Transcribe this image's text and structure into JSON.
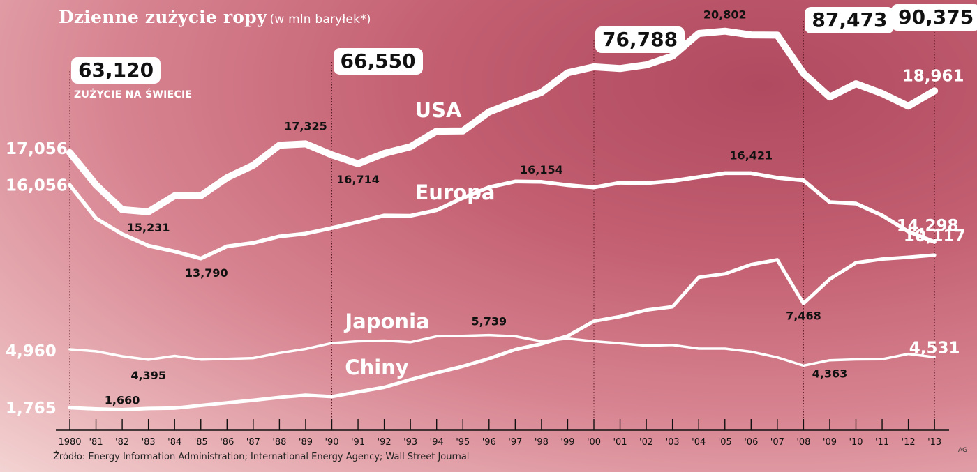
{
  "header": {
    "title": "Dzienne zużycie ropy",
    "subtitle": "(w mln baryłek*)"
  },
  "world_label": "ZUŻYCIE NA ŚWIECIE",
  "source": "Źródło: Energy Information Administration; International Energy Agency; Wall Street Journal",
  "credit": "AG",
  "colors": {
    "line": "#ffffff",
    "axis": "#111111"
  },
  "chart_data": {
    "type": "line",
    "title": "Dzienne zużycie ropy",
    "subtitle": "(w mln baryłek*)",
    "x": [
      1980,
      1981,
      1982,
      1983,
      1984,
      1985,
      1986,
      1987,
      1988,
      1989,
      1990,
      1991,
      1992,
      1993,
      1994,
      1995,
      1996,
      1997,
      1998,
      1999,
      2000,
      2001,
      2002,
      2003,
      2004,
      2005,
      2006,
      2007,
      2008,
      2009,
      2010,
      2011,
      2012,
      2013
    ],
    "x_tick_labels": [
      "1980",
      "'81",
      "'82",
      "'83",
      "'84",
      "'85",
      "'86",
      "'87",
      "'88",
      "'89",
      "'90",
      "'91",
      "'92",
      "'93",
      "'94",
      "'95",
      "'96",
      "'97",
      "'98",
      "'99",
      "'00",
      "'01",
      "'02",
      "'03",
      "'04",
      "'05",
      "'06",
      "'07",
      "'08",
      "'09",
      "'10",
      "'11",
      "'12",
      "'13"
    ],
    "world": [
      {
        "year": 1980,
        "label": "63,120"
      },
      {
        "year": 1990,
        "label": "66,550"
      },
      {
        "year": 2000,
        "label": "76,788"
      },
      {
        "year": 2008,
        "label": "87,473"
      },
      {
        "year": 2013,
        "label": "90,375"
      }
    ],
    "series": [
      {
        "name": "USA",
        "values": [
          17.056,
          16.058,
          15.296,
          15.231,
          15.726,
          15.726,
          16.281,
          16.665,
          17.283,
          17.325,
          16.988,
          16.714,
          17.033,
          17.237,
          17.718,
          17.725,
          18.309,
          18.62,
          18.917,
          19.519,
          19.701,
          19.649,
          19.761,
          20.034,
          20.731,
          20.802,
          20.687,
          20.68,
          19.498,
          18.771,
          19.18,
          18.882,
          18.49,
          18.961
        ],
        "labels": [
          {
            "year": 1980,
            "text": "17,056"
          },
          {
            "year": 1983,
            "text": "15,231"
          },
          {
            "year": 1989,
            "text": "17,325"
          },
          {
            "year": 1991,
            "text": "16,714"
          },
          {
            "year": 2005,
            "text": "20,802"
          },
          {
            "year": 2013,
            "text": "18,961"
          }
        ]
      },
      {
        "name": "Europa",
        "values": [
          16.056,
          15.027,
          14.542,
          14.184,
          14.009,
          13.79,
          14.166,
          14.272,
          14.471,
          14.556,
          14.728,
          14.917,
          15.117,
          15.108,
          15.282,
          15.658,
          15.987,
          16.166,
          16.154,
          16.054,
          15.986,
          16.126,
          16.113,
          16.183,
          16.302,
          16.421,
          16.421,
          16.28,
          16.201,
          15.527,
          15.483,
          15.12,
          14.621,
          14.298
        ],
        "labels": [
          {
            "year": 1980,
            "text": "16,056"
          },
          {
            "year": 1985,
            "text": "13,790"
          },
          {
            "year": 1998,
            "text": "16,154"
          },
          {
            "year": 2006,
            "text": "16,421"
          },
          {
            "year": 2013,
            "text": "14,298"
          }
        ]
      },
      {
        "name": "Japonia",
        "values": [
          4.96,
          4.85,
          4.58,
          4.395,
          4.6,
          4.4,
          4.44,
          4.48,
          4.76,
          4.98,
          5.3,
          5.4,
          5.44,
          5.35,
          5.67,
          5.7,
          5.739,
          5.67,
          5.4,
          5.55,
          5.4,
          5.29,
          5.16,
          5.2,
          5.0,
          5.0,
          4.83,
          4.52,
          4.07,
          4.363,
          4.41,
          4.42,
          4.71,
          4.531
        ],
        "labels": [
          {
            "year": 1980,
            "text": "4,960"
          },
          {
            "year": 1983,
            "text": "4,395"
          },
          {
            "year": 1996,
            "text": "5,739"
          },
          {
            "year": 2009,
            "text": "4,363"
          },
          {
            "year": 2013,
            "text": "4,531"
          }
        ]
      },
      {
        "name": "Chiny",
        "values": [
          1.765,
          1.7,
          1.66,
          1.72,
          1.74,
          1.89,
          2.03,
          2.17,
          2.33,
          2.45,
          2.37,
          2.63,
          2.88,
          3.3,
          3.68,
          4.03,
          4.45,
          4.95,
          5.26,
          5.69,
          6.5,
          6.75,
          7.11,
          7.29,
          8.9,
          9.09,
          9.6,
          9.86,
          7.468,
          8.8,
          9.7,
          9.9,
          10.0,
          10.117
        ],
        "labels": [
          {
            "year": 1980,
            "text": "1,765"
          },
          {
            "year": 1982,
            "text": "1,660"
          },
          {
            "year": 2008,
            "text": "7,468"
          },
          {
            "year": 2013,
            "text": "10,117"
          }
        ]
      }
    ]
  }
}
